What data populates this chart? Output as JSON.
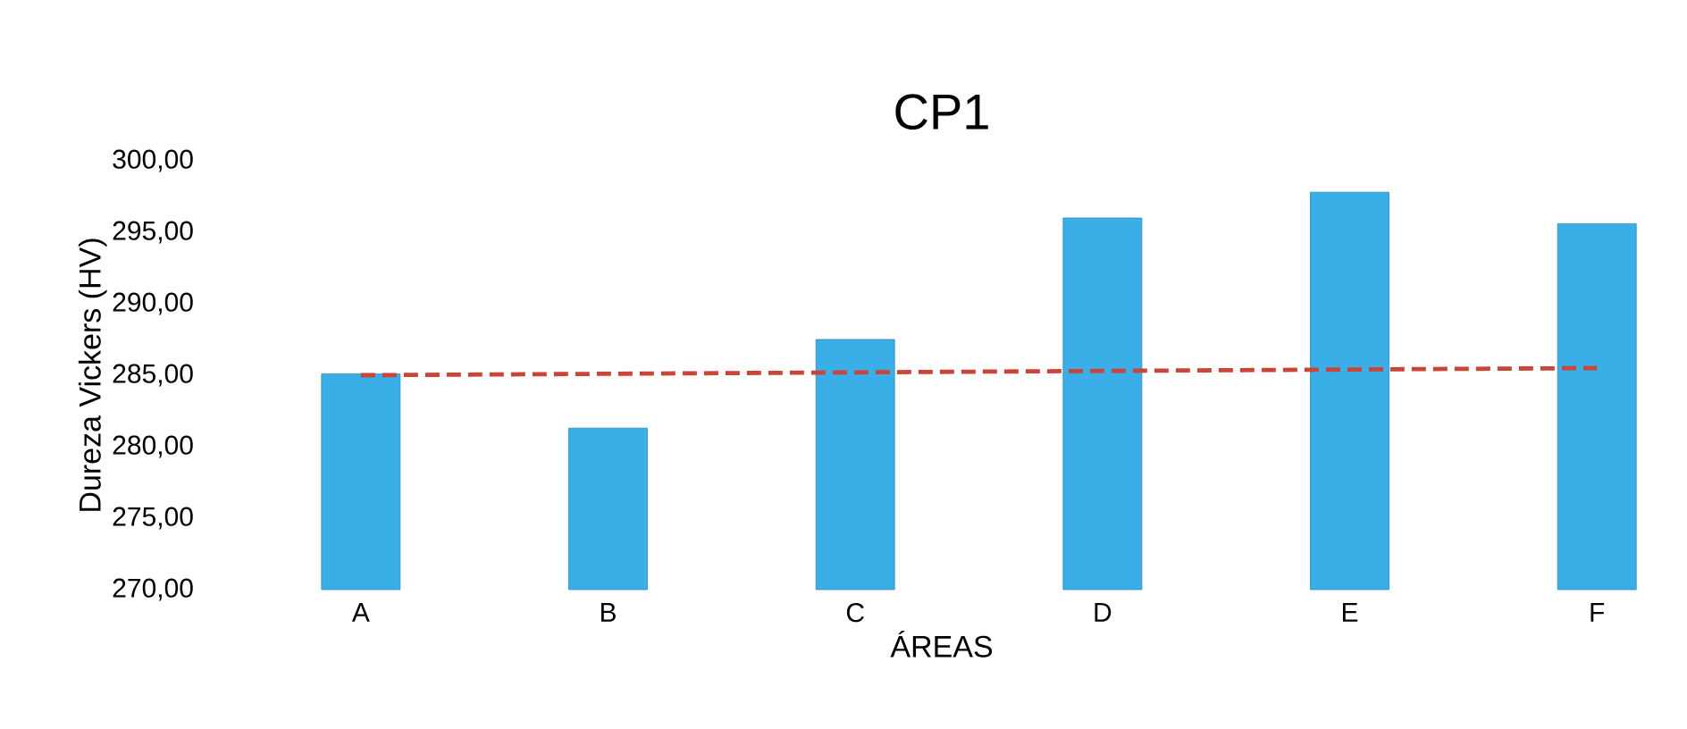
{
  "chart_data": {
    "type": "bar",
    "title": "CP1",
    "xlabel": "ÁREAS",
    "ylabel": "Dureza Vickers (HV)",
    "categories": [
      "A",
      "B",
      "C",
      "D",
      "E",
      "F"
    ],
    "series": [
      {
        "color": "#3aaee6",
        "values": [
          285.1,
          281.3,
          287.5,
          296.0,
          297.8,
          295.6
        ]
      },
      {
        "type": "line",
        "color": "#c8453a",
        "line_style": "dashed",
        "values": [
          285.0,
          285.1,
          285.2,
          285.3,
          285.4,
          285.5
        ]
      }
    ],
    "ylim": [
      270,
      300
    ],
    "yticks": [
      {
        "value": 270,
        "label": "270,00"
      },
      {
        "value": 275,
        "label": "275,00"
      },
      {
        "value": 280,
        "label": "280,00"
      },
      {
        "value": 285,
        "label": "285,00"
      },
      {
        "value": 290,
        "label": "290,00"
      },
      {
        "value": 295,
        "label": "295,00"
      },
      {
        "value": 300,
        "label": "300,00"
      }
    ],
    "grid": false
  }
}
